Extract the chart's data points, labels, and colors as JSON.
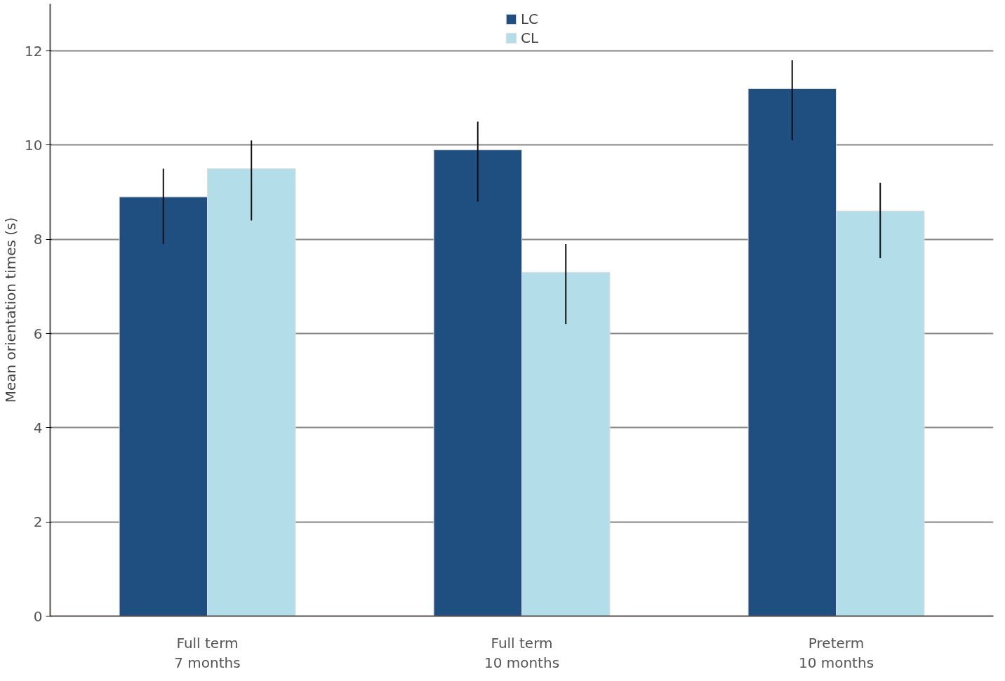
{
  "chart_data": {
    "type": "bar",
    "ylabel": "Mean orientation times (s)",
    "categories": [
      "Full term\n7 months",
      "Full term\n10 months",
      "Preterm\n10 months"
    ],
    "series": [
      {
        "name": "LC",
        "color": "#1f4e80",
        "values": [
          8.9,
          9.9,
          11.2
        ],
        "errors": [
          [
            7.9,
            9.5
          ],
          [
            8.8,
            10.5
          ],
          [
            10.1,
            11.8
          ]
        ]
      },
      {
        "name": "CL",
        "color": "#b3dde8",
        "values": [
          9.5,
          7.3,
          8.6
        ],
        "errors": [
          [
            8.4,
            10.1
          ],
          [
            6.2,
            7.9
          ],
          [
            7.6,
            9.2
          ]
        ]
      }
    ],
    "ylim": [
      0,
      13
    ],
    "yticks": [
      0,
      2,
      4,
      6,
      8,
      10,
      12
    ],
    "grid": "y",
    "legend": "top"
  }
}
